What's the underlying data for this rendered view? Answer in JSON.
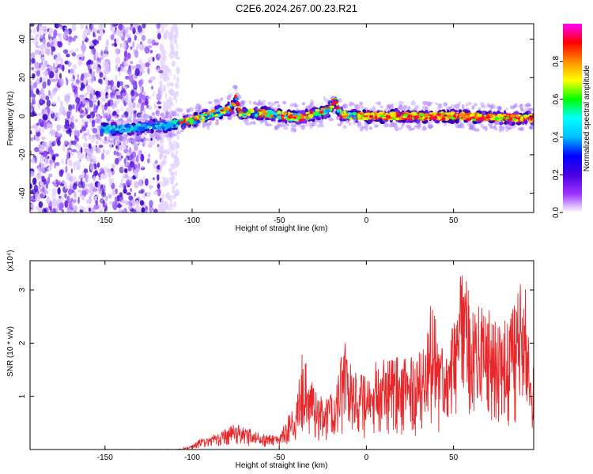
{
  "title": "C2E6.2024.267.00.23.R21",
  "chart_data": [
    {
      "type": "heatmap",
      "xlabel": "Height of straight line (km)",
      "ylabel": "Frequency (Hz)",
      "xlim": [
        -193,
        96
      ],
      "ylim": [
        -50,
        48
      ],
      "xticks": [
        -150,
        -100,
        -50,
        0,
        50
      ],
      "yticks": [
        -40,
        -20,
        0,
        20,
        40
      ],
      "colorbar": {
        "label": "Normalized spectral amplitude",
        "range": [
          0,
          1
        ],
        "ticks": [
          "0.0",
          "0.2",
          "0.4",
          "0.6",
          "0.8"
        ],
        "tick_values": [
          0.0,
          0.2,
          0.4,
          0.6,
          0.8
        ],
        "colors": [
          "#ffffff",
          "#9b30ff",
          "#4a00e0",
          "#0000ff",
          "#00bfff",
          "#00ffff",
          "#00ff00",
          "#ffff00",
          "#ff8c00",
          "#ff0000",
          "#ff00ff"
        ]
      },
      "ridge": {
        "x": [
          -150,
          -130,
          -115,
          -105,
          -95,
          -85,
          -78,
          -75,
          -72,
          -65,
          -55,
          -45,
          -40,
          -30,
          -22,
          -18,
          -15,
          -5,
          0,
          20,
          50,
          80,
          96
        ],
        "y": [
          -7,
          -6,
          -5,
          -3,
          -1,
          2,
          4,
          9,
          1,
          2,
          1,
          0,
          -1,
          1,
          3,
          8,
          1,
          0,
          0,
          0,
          0,
          -1,
          -1
        ]
      },
      "grid": false
    },
    {
      "type": "line",
      "xlabel": "Height of straight line (km)",
      "ylabel": "SNR (10 * v/v)",
      "y_multiplier": "(x10⁴)",
      "xlim": [
        -193,
        96
      ],
      "ylim": [
        0,
        3.55
      ],
      "xticks": [
        -150,
        -100,
        -50,
        0,
        50
      ],
      "yticks": [
        1,
        2,
        3
      ],
      "color": "#e8272a",
      "envelope": {
        "x": [
          -193,
          -110,
          -102,
          -95,
          -85,
          -75,
          -60,
          -50,
          -45,
          -40,
          -37,
          -33,
          -25,
          -18,
          -13,
          -8,
          0,
          10,
          20,
          30,
          37,
          45,
          52,
          55,
          60,
          70,
          80,
          86,
          90,
          96
        ],
        "y": [
          0.0,
          0.01,
          0.05,
          0.2,
          0.3,
          0.5,
          0.3,
          0.25,
          0.6,
          1.0,
          1.9,
          1.3,
          0.9,
          1.2,
          2.0,
          1.4,
          1.3,
          1.8,
          1.6,
          1.7,
          2.6,
          1.8,
          2.4,
          3.4,
          2.6,
          2.5,
          2.3,
          3.0,
          3.2,
          1.6
        ]
      },
      "grid": false
    }
  ]
}
